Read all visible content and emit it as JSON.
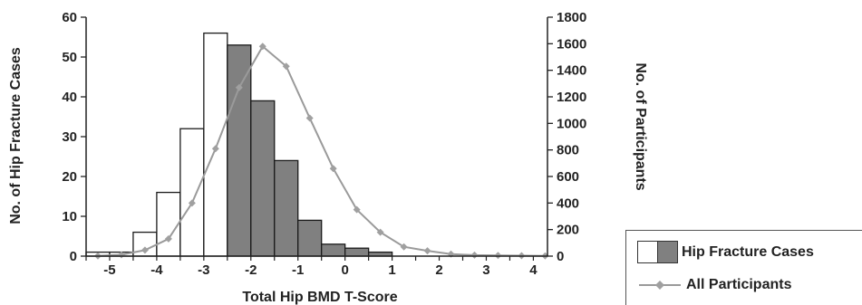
{
  "chart_data": {
    "type": "bar",
    "xlabel": "Total Hip BMD T-Score",
    "ylabel": "No. of Hip Fracture Cases",
    "y2label": "No. of Participants",
    "xlim": [
      -5.5,
      4.3
    ],
    "ylim": [
      0,
      60
    ],
    "y2lim": [
      0,
      1800
    ],
    "x_ticks": [
      -5,
      -4,
      -3,
      -2,
      -1,
      0,
      1,
      2,
      3,
      4
    ],
    "x_tick_labels": [
      "-5",
      "-4",
      "-3",
      "-2",
      "-1",
      "0",
      "1",
      "2",
      "3",
      "4"
    ],
    "y_ticks": [
      0,
      10,
      20,
      30,
      40,
      50,
      60
    ],
    "y2_ticks": [
      0,
      200,
      400,
      600,
      800,
      1000,
      1200,
      1400,
      1600,
      1800
    ],
    "bin_width": 0.5,
    "series": [
      {
        "name": "Hip Fracture Cases",
        "kind": "histogram",
        "bins": [
          {
            "start": -5.5,
            "value": 1,
            "fill": "white"
          },
          {
            "start": -5.0,
            "value": 1,
            "fill": "white"
          },
          {
            "start": -4.5,
            "value": 6,
            "fill": "white"
          },
          {
            "start": -4.0,
            "value": 16,
            "fill": "white"
          },
          {
            "start": -3.5,
            "value": 32,
            "fill": "white"
          },
          {
            "start": -3.0,
            "value": 56,
            "fill": "white"
          },
          {
            "start": -2.5,
            "value": 53,
            "fill": "gray"
          },
          {
            "start": -2.0,
            "value": 39,
            "fill": "gray"
          },
          {
            "start": -1.5,
            "value": 24,
            "fill": "gray"
          },
          {
            "start": -1.0,
            "value": 9,
            "fill": "gray"
          },
          {
            "start": -0.5,
            "value": 3,
            "fill": "gray"
          },
          {
            "start": 0.0,
            "value": 2,
            "fill": "gray"
          },
          {
            "start": 0.5,
            "value": 1,
            "fill": "gray"
          }
        ]
      },
      {
        "name": "All Participants",
        "kind": "line",
        "axis": "right",
        "x": [
          -5.25,
          -4.75,
          -4.25,
          -3.75,
          -3.25,
          -2.75,
          -2.25,
          -1.75,
          -1.25,
          -0.75,
          -0.25,
          0.25,
          0.75,
          1.25,
          1.75,
          2.25,
          2.75,
          3.25,
          3.75,
          4.25
        ],
        "values": [
          2,
          10,
          45,
          130,
          400,
          810,
          1270,
          1580,
          1430,
          1040,
          660,
          350,
          180,
          70,
          40,
          15,
          8,
          5,
          3,
          2
        ]
      }
    ],
    "colors": {
      "open": "#ffffff",
      "filled": "#808080",
      "line": "#9a9a9a",
      "marker": "#a0a0a0"
    },
    "legend": {
      "placement": "bottom-right",
      "entries": [
        "Hip Fracture Cases",
        "All Participants"
      ]
    }
  }
}
